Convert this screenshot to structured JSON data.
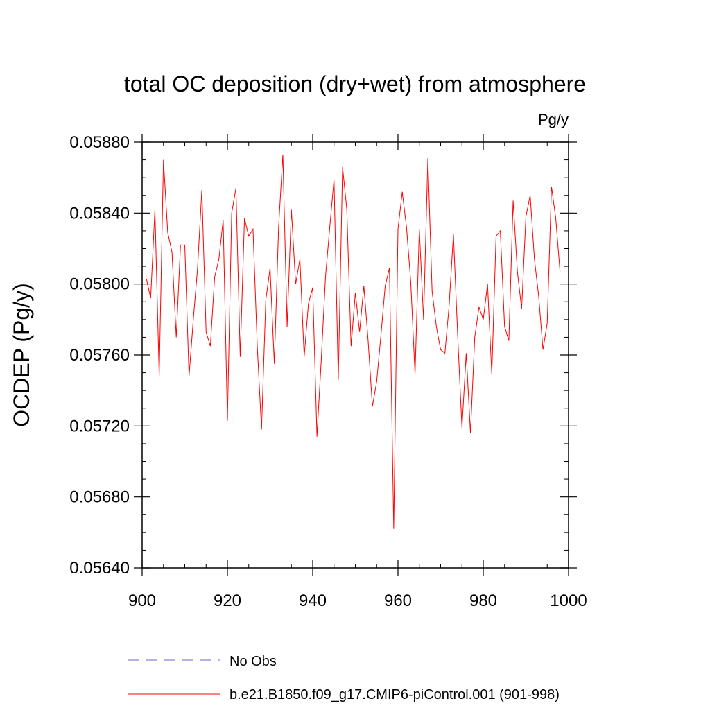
{
  "chart_data": {
    "type": "line",
    "title": "total OC deposition (dry+wet) from atmosphere",
    "units_label": "Pg/y",
    "xlabel": "",
    "ylabel": "OCDEP  (Pg/y)",
    "xlim": [
      900,
      1000
    ],
    "ylim": [
      0.0564,
      0.0588
    ],
    "grid": false,
    "x_ticks": [
      900,
      920,
      940,
      960,
      980,
      1000
    ],
    "x_tick_labels": [
      "900",
      "920",
      "940",
      "960",
      "980",
      "1000"
    ],
    "x_minor_step": 5,
    "y_ticks": [
      0.0564,
      0.0568,
      0.0572,
      0.0576,
      0.058,
      0.0584,
      0.0588
    ],
    "y_tick_labels": [
      "0.05640",
      "0.05680",
      "0.05720",
      "0.05760",
      "0.05800",
      "0.05840",
      "0.05880"
    ],
    "y_minor_step": 0.0001,
    "legend": [
      {
        "label": "No Obs",
        "color": "#6f65c8",
        "style": "dashed"
      },
      {
        "label": "b.e21.B1850.f09_g17.CMIP6-piControl.001 (901-998)",
        "color": "#ff0000",
        "style": "solid"
      }
    ],
    "series": [
      {
        "name": "b.e21.B1850.f09_g17.CMIP6-piControl.001 (901-998)",
        "color": "#ff0000",
        "x": [
          901,
          902,
          903,
          904,
          905,
          906,
          907,
          908,
          909,
          910,
          911,
          912,
          913,
          914,
          915,
          916,
          917,
          918,
          919,
          920,
          921,
          922,
          923,
          924,
          925,
          926,
          927,
          928,
          929,
          930,
          931,
          932,
          933,
          934,
          935,
          936,
          937,
          938,
          939,
          940,
          941,
          942,
          943,
          944,
          945,
          946,
          947,
          948,
          949,
          950,
          951,
          952,
          953,
          954,
          955,
          956,
          957,
          958,
          959,
          960,
          961,
          962,
          963,
          964,
          965,
          966,
          967,
          968,
          969,
          970,
          971,
          972,
          973,
          974,
          975,
          976,
          977,
          978,
          979,
          980,
          981,
          982,
          983,
          984,
          985,
          986,
          987,
          988,
          989,
          990,
          991,
          992,
          993,
          994,
          995,
          996,
          997,
          998
        ],
        "values": [
          0.05803,
          0.05792,
          0.05842,
          0.05748,
          0.0587,
          0.05829,
          0.05818,
          0.0577,
          0.05822,
          0.05822,
          0.05748,
          0.0578,
          0.05809,
          0.05853,
          0.05773,
          0.05765,
          0.05804,
          0.05814,
          0.05836,
          0.05723,
          0.0584,
          0.05854,
          0.05759,
          0.05837,
          0.05827,
          0.05831,
          0.05765,
          0.05718,
          0.05791,
          0.05809,
          0.05755,
          0.05832,
          0.05873,
          0.05776,
          0.05842,
          0.058,
          0.05814,
          0.05759,
          0.05789,
          0.05798,
          0.05714,
          0.05757,
          0.05804,
          0.05832,
          0.05859,
          0.05746,
          0.05866,
          0.05842,
          0.05765,
          0.05795,
          0.05773,
          0.05799,
          0.05768,
          0.05731,
          0.05745,
          0.05771,
          0.05799,
          0.05809,
          0.05662,
          0.05831,
          0.05852,
          0.05832,
          0.05801,
          0.05749,
          0.05831,
          0.0578,
          0.05871,
          0.05796,
          0.05776,
          0.05763,
          0.05761,
          0.05788,
          0.05828,
          0.05771,
          0.05719,
          0.05761,
          0.05716,
          0.0577,
          0.05787,
          0.0578,
          0.058,
          0.05749,
          0.05827,
          0.0583,
          0.05776,
          0.05768,
          0.05847,
          0.05807,
          0.05786,
          0.05838,
          0.0585,
          0.05814,
          0.05793,
          0.05763,
          0.05778,
          0.05855,
          0.05837,
          0.05807
        ]
      }
    ]
  }
}
